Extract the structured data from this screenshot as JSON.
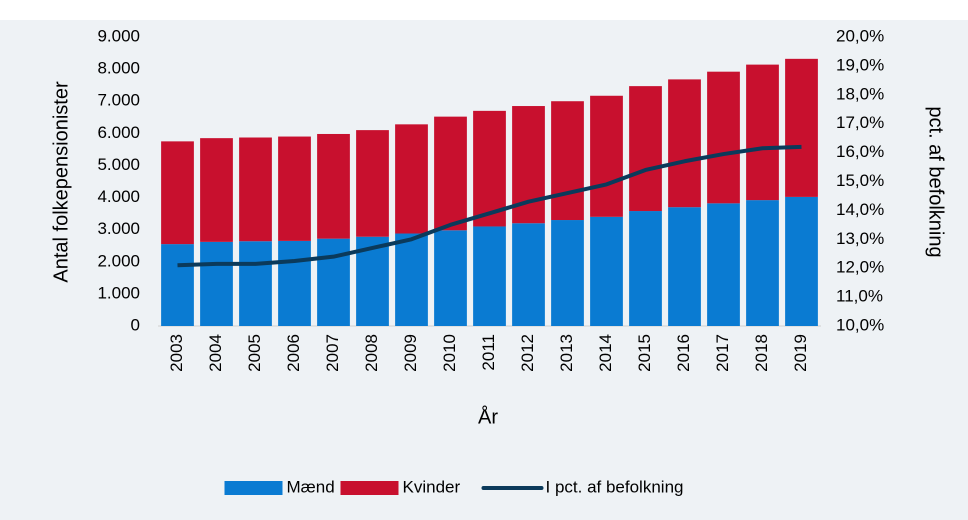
{
  "chart_data": {
    "type": "bar-line",
    "x_label": "År",
    "y_label": "Antal folkepensionister",
    "y2_label": "pct. af befolkning",
    "categories": [
      "2003",
      "2004",
      "2005",
      "2006",
      "2007",
      "2008",
      "2009",
      "2010",
      "2011",
      "2012",
      "2013",
      "2014",
      "2015",
      "2016",
      "2017",
      "2018",
      "2019"
    ],
    "series": [
      {
        "name": "Mænd",
        "color": "#0a7bd2",
        "values": [
          2550,
          2620,
          2640,
          2650,
          2720,
          2780,
          2880,
          2980,
          3100,
          3200,
          3300,
          3400,
          3580,
          3700,
          3820,
          3920,
          4020
        ]
      },
      {
        "name": "Kvinder",
        "color": "#c8102e",
        "values": [
          3200,
          3230,
          3230,
          3250,
          3260,
          3320,
          3400,
          3540,
          3600,
          3650,
          3700,
          3770,
          3890,
          3980,
          4100,
          4220,
          4300
        ]
      },
      {
        "name": "I pct. af befolkning",
        "color": "#0b3a5b",
        "axis": "y2",
        "values": [
          12.1,
          12.15,
          12.15,
          12.25,
          12.4,
          12.7,
          13.0,
          13.5,
          13.9,
          14.3,
          14.6,
          14.9,
          15.4,
          15.7,
          15.95,
          16.15,
          16.2
        ]
      }
    ],
    "ylim": [
      0,
      9000
    ],
    "yticks": [
      0,
      {
        "value": 1000,
        "label": "1.000"
      },
      {
        "value": 2000,
        "label": "2.000"
      },
      {
        "value": 3000,
        "label": "3.000"
      },
      {
        "value": 4000,
        "label": "4.000"
      },
      {
        "value": 5000,
        "label": "5.000"
      },
      {
        "value": 6000,
        "label": "6.000"
      },
      {
        "value": 7000,
        "label": "7.000"
      },
      {
        "value": 8000,
        "label": "8.000"
      },
      {
        "value": 9000,
        "label": "9.000"
      }
    ],
    "y2lim": [
      10,
      20
    ],
    "y2ticks": [
      {
        "value": 10,
        "label": "10,0%"
      },
      {
        "value": 11,
        "label": "11,0%"
      },
      {
        "value": 12,
        "label": "12,0%"
      },
      {
        "value": 13,
        "label": "13,0%"
      },
      {
        "value": 14,
        "label": "14,0%"
      },
      {
        "value": 15,
        "label": "15,0%"
      },
      {
        "value": 16,
        "label": "16,0%"
      },
      {
        "value": 17,
        "label": "17,0%"
      },
      {
        "value": 18,
        "label": "18,0%"
      },
      {
        "value": 19,
        "label": "19,0%"
      },
      {
        "value": 20,
        "label": "20,0%"
      }
    ],
    "legend": "bottom"
  }
}
